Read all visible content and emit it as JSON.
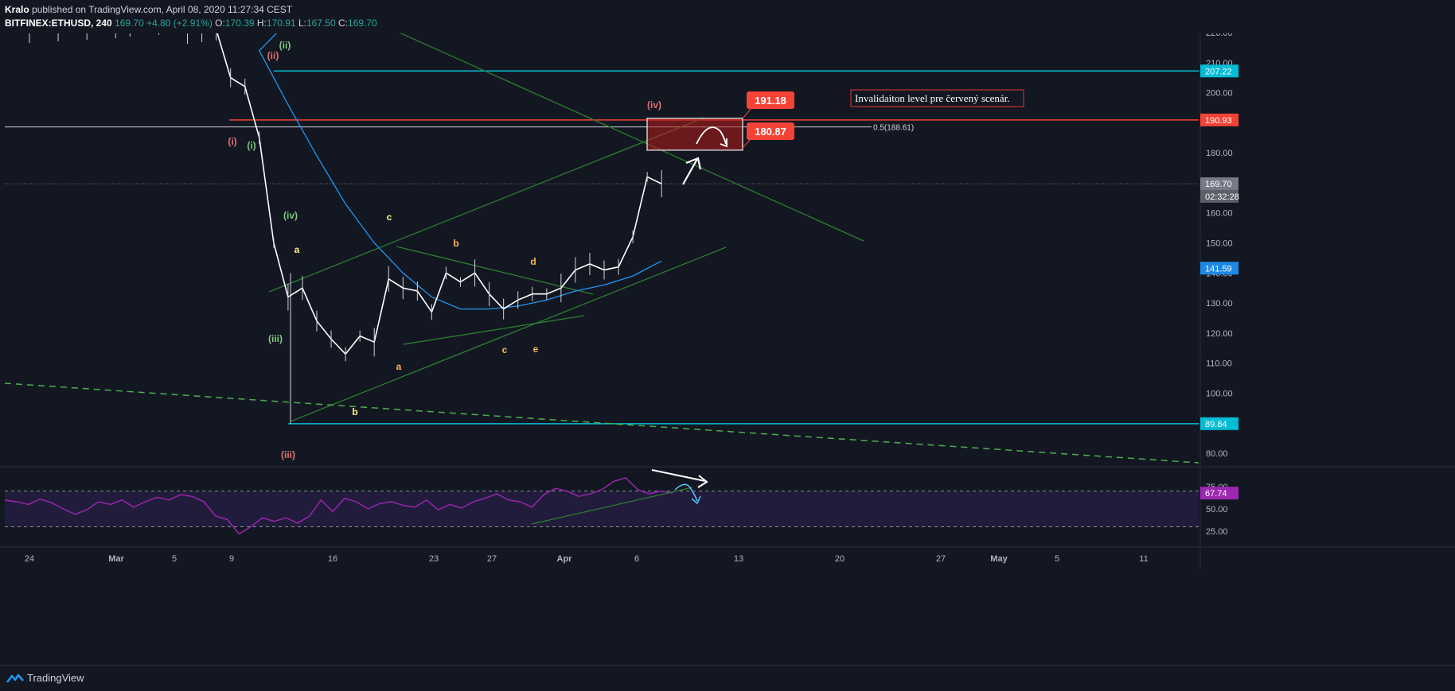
{
  "header": {
    "author": "Kralo",
    "published_text": "published on TradingView.com, April 08, 2020 11:27:34 CEST",
    "symbol": "BITFINEX:ETHUSD, 240",
    "price": "169.70",
    "change": "+4.80 (+2.91%)",
    "open_label": "O:",
    "open": "170.39",
    "high_label": "H:",
    "high": "170.91",
    "low_label": "L:",
    "low": "167.50",
    "close_label": "C:",
    "close": "169.70"
  },
  "footer": {
    "brand": "TradingView",
    "brand_icon": "tradingview-logo-icon"
  },
  "colors": {
    "background": "#131722",
    "grid": "#1e222d",
    "text": "#b2b5be",
    "cyan_level": "#00bcd4",
    "red_level": "#f44336",
    "green_line": "#2e7d32",
    "ma_blue": "#2196f3",
    "rsi_purple": "#9c27b0",
    "wave_red": "#e57373",
    "wave_green": "#81c784",
    "wave_orange": "#ffb74d",
    "wave_yellow": "#fff176"
  },
  "chart_data": {
    "type": "line",
    "title": "",
    "x_ticks": [
      "24",
      "Mar",
      "5",
      "9",
      "16",
      "23",
      "27",
      "Apr",
      "6",
      "13",
      "20",
      "27",
      "May",
      "5",
      "11"
    ],
    "y_ticks": [
      "220.00",
      "210.00",
      "200.00",
      "190.00",
      "180.00",
      "170.00",
      "160.00",
      "150.00",
      "140.00",
      "130.00",
      "120.00",
      "110.00",
      "100.00",
      "90.00",
      "80.00"
    ],
    "ylim": [
      75,
      222
    ],
    "rsi_ticks": [
      "75.00",
      "50.00",
      "25.00"
    ],
    "rsi_ylim": [
      15,
      90
    ],
    "price_labels": [
      {
        "text": "207.22",
        "value": 207.22,
        "color": "#00bcd4"
      },
      {
        "text": "190.93",
        "value": 190.93,
        "color": "#f44336"
      },
      {
        "text": "169.70",
        "value": 169.7,
        "color": "#787b86"
      },
      {
        "text": "02:32:28",
        "value": 165.5,
        "color": "#5d606b"
      },
      {
        "text": "141.59",
        "value": 141.59,
        "color": "#1e88e5"
      },
      {
        "text": "89.84",
        "value": 89.84,
        "color": "#00bcd4"
      }
    ],
    "rsi_label": {
      "text": "67.74",
      "value": 67.74,
      "color": "#9c27b0"
    },
    "fib_label": "0.5(188.61)",
    "invalidation_note": "Invalidaiton level pre červený scenár.",
    "target_high": "191.18",
    "target_low": "180.87",
    "price_series": {
      "name": "",
      "x": [
        "Feb 22",
        "Feb 24",
        "Feb 26",
        "Feb 28",
        "Mar 1",
        "Mar 2",
        "Mar 4",
        "Mar 6",
        "Mar 7",
        "Mar 8",
        "Mar 9",
        "Mar 10",
        "Mar 11",
        "Mar 12",
        "Mar 13",
        "Mar 14",
        "Mar 15",
        "Mar 16",
        "Mar 17",
        "Mar 18",
        "Mar 19",
        "Mar 20",
        "Mar 21",
        "Mar 22",
        "Mar 23",
        "Mar 24",
        "Mar 25",
        "Mar 26",
        "Mar 27",
        "Mar 28",
        "Mar 29",
        "Mar 30",
        "Mar 31",
        "Apr 1",
        "Apr 2",
        "Apr 3",
        "Apr 4",
        "Apr 5",
        "Apr 6",
        "Apr 7",
        "Apr 8"
      ],
      "y": [
        226,
        228,
        227,
        229,
        228,
        230,
        226,
        234,
        231,
        226,
        205,
        202,
        185,
        150,
        132,
        135,
        124,
        118,
        113,
        119,
        117,
        138,
        135,
        134,
        127,
        140,
        137,
        140,
        133,
        128,
        131,
        133,
        133,
        135,
        141,
        143,
        141,
        142,
        152,
        172,
        169.7
      ]
    },
    "ma_series": {
      "name": "",
      "x": [
        "Mar 11",
        "Mar 13",
        "Mar 15",
        "Mar 17",
        "Mar 19",
        "Mar 21",
        "Mar 23",
        "Mar 25",
        "Mar 27",
        "Mar 29",
        "Mar 31",
        "Apr 2",
        "Apr 4",
        "Apr 6",
        "Apr 8"
      ],
      "y": [
        214,
        196,
        179,
        163,
        150,
        140,
        132,
        128,
        128,
        129,
        131,
        134,
        136,
        139,
        144
      ]
    },
    "rsi_series": {
      "name": "",
      "values": [
        60,
        58,
        55,
        61,
        57,
        50,
        44,
        49,
        58,
        55,
        60,
        52,
        58,
        63,
        60,
        66,
        64,
        58,
        42,
        38,
        22,
        30,
        40,
        36,
        40,
        34,
        42,
        60,
        47,
        62,
        58,
        50,
        56,
        58,
        54,
        52,
        60,
        49,
        55,
        51,
        58,
        62,
        67,
        60,
        58,
        52,
        66,
        73,
        70,
        64,
        67,
        72,
        81,
        85,
        72,
        67,
        70,
        67.74
      ]
    },
    "wave_labels": [
      {
        "text": "(ii)",
        "color": "#e57373"
      },
      {
        "text": "(ii)",
        "color": "#81c784"
      },
      {
        "text": "(i)",
        "color": "#e57373"
      },
      {
        "text": "(i)",
        "color": "#81c784"
      },
      {
        "text": "(iv)",
        "color": "#81c784"
      },
      {
        "text": "(iii)",
        "color": "#81c784"
      },
      {
        "text": "(iii)",
        "color": "#e57373"
      },
      {
        "text": "(iv)",
        "color": "#e57373"
      },
      {
        "text": "a",
        "color": "#fff176"
      },
      {
        "text": "b",
        "color": "#fff176"
      },
      {
        "text": "c",
        "color": "#fff176"
      },
      {
        "text": "a",
        "color": "#ffb74d"
      },
      {
        "text": "b",
        "color": "#ffb74d"
      },
      {
        "text": "c",
        "color": "#ffb74d"
      },
      {
        "text": "d",
        "color": "#ffb74d"
      },
      {
        "text": "e",
        "color": "#ffb74d"
      }
    ],
    "levels": [
      {
        "name": "cyan-resistance",
        "value": 207.22
      },
      {
        "name": "red-invalidation",
        "value": 190.93
      },
      {
        "name": "fib-0.5",
        "value": 188.61
      },
      {
        "name": "cyan-support",
        "value": 89.84
      }
    ],
    "grid": false,
    "legend": "none"
  }
}
